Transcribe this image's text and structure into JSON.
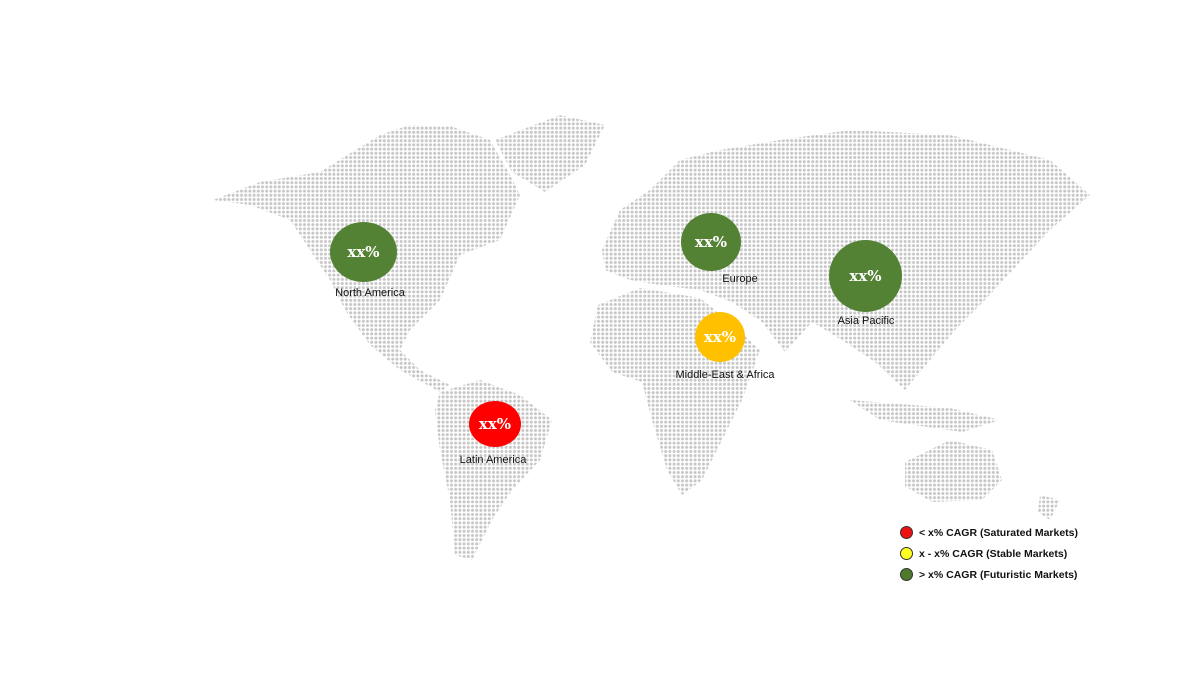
{
  "regions": [
    {
      "name": "North America",
      "value": "xx%",
      "status": "futuristic"
    },
    {
      "name": "Europe",
      "value": "xx%",
      "status": "futuristic"
    },
    {
      "name": "Asia Pacific",
      "value": "xx%",
      "status": "futuristic"
    },
    {
      "name": "Middle-East & Africa",
      "value": "xx%",
      "status": "stable"
    },
    {
      "name": "Latin America",
      "value": "xx%",
      "status": "saturated"
    }
  ],
  "legend": [
    {
      "label": "< x% CAGR (Saturated Markets)",
      "color": "#ee1111"
    },
    {
      "label": "x - x% CAGR (Stable Markets)",
      "color": "#ffff22"
    },
    {
      "label": "> x% CAGR (Futuristic Markets)",
      "color": "#4f7a2e"
    }
  ],
  "colors": {
    "futuristic": "#548235",
    "stable": "#ffc000",
    "saturated": "#ff0000",
    "map_dots": "#c8c8c8"
  }
}
